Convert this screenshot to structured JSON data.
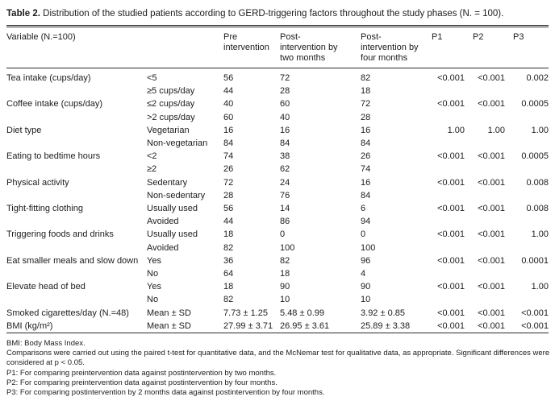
{
  "table": {
    "title_label": "Table 2.",
    "title_text": "Distribution of the studied patients according to GERD-triggering factors throughout the study phases (N. = 100).",
    "header": {
      "variable": "Variable (N.=100)",
      "pre": "Pre\nintervention",
      "post2": "Post-\nintervention by\ntwo months",
      "post4": "Post-\nintervention by\nfour months",
      "p1": "P1",
      "p2": "P2",
      "p3": "P3"
    },
    "rows": [
      {
        "variable": "Tea intake (cups/day)",
        "category": "<5",
        "pre": "56",
        "post2": "72",
        "post4": "82",
        "p1": "<0.001",
        "p2": "<0.001",
        "p3": "0.002"
      },
      {
        "variable": "",
        "category": "≥5 cups/day",
        "pre": "44",
        "post2": "28",
        "post4": "18",
        "p1": "",
        "p2": "",
        "p3": ""
      },
      {
        "variable": "Coffee intake (cups/day)",
        "category": "≤2 cups/day",
        "pre": "40",
        "post2": "60",
        "post4": "72",
        "p1": "<0.001",
        "p2": "<0.001",
        "p3": "0.0005"
      },
      {
        "variable": "",
        "category": ">2 cups/day",
        "pre": "60",
        "post2": "40",
        "post4": "28",
        "p1": "",
        "p2": "",
        "p3": ""
      },
      {
        "variable": "Diet type",
        "category": "Vegetarian",
        "pre": "16",
        "post2": "16",
        "post4": "16",
        "p1": "1.00",
        "p2": "1.00",
        "p3": "1.00"
      },
      {
        "variable": "",
        "category": "Non-vegetarian",
        "pre": "84",
        "post2": "84",
        "post4": "84",
        "p1": "",
        "p2": "",
        "p3": ""
      },
      {
        "variable": "Eating to bedtime hours",
        "category": "<2",
        "pre": "74",
        "post2": "38",
        "post4": "26",
        "p1": "<0.001",
        "p2": "<0.001",
        "p3": "0.0005"
      },
      {
        "variable": "",
        "category": "≥2",
        "pre": "26",
        "post2": "62",
        "post4": "74",
        "p1": "",
        "p2": "",
        "p3": ""
      },
      {
        "variable": "Physical activity",
        "category": "Sedentary",
        "pre": "72",
        "post2": "24",
        "post4": "16",
        "p1": "<0.001",
        "p2": "<0.001",
        "p3": "0.008"
      },
      {
        "variable": "",
        "category": "Non-sedentary",
        "pre": "28",
        "post2": "76",
        "post4": "84",
        "p1": "",
        "p2": "",
        "p3": ""
      },
      {
        "variable": "Tight-fitting clothing",
        "category": "Usually used",
        "pre": "56",
        "post2": "14",
        "post4": "6",
        "p1": "<0.001",
        "p2": "<0.001",
        "p3": "0.008"
      },
      {
        "variable": "",
        "category": "Avoided",
        "pre": "44",
        "post2": "86",
        "post4": "94",
        "p1": "",
        "p2": "",
        "p3": ""
      },
      {
        "variable": "Triggering foods and drinks",
        "category": "Usually used",
        "pre": "18",
        "post2": "0",
        "post4": "0",
        "p1": "<0.001",
        "p2": "<0.001",
        "p3": "1.00"
      },
      {
        "variable": "",
        "category": "Avoided",
        "pre": "82",
        "post2": "100",
        "post4": "100",
        "p1": "",
        "p2": "",
        "p3": ""
      },
      {
        "variable": "Eat smaller meals and slow down",
        "category": "Yes",
        "pre": "36",
        "post2": "82",
        "post4": "96",
        "p1": "<0.001",
        "p2": "<0.001",
        "p3": "0.0001"
      },
      {
        "variable": "",
        "category": "No",
        "pre": "64",
        "post2": "18",
        "post4": "4",
        "p1": "",
        "p2": "",
        "p3": ""
      },
      {
        "variable": "Elevate head of bed",
        "category": "Yes",
        "pre": "18",
        "post2": "90",
        "post4": "90",
        "p1": "<0.001",
        "p2": "<0.001",
        "p3": "1.00"
      },
      {
        "variable": "",
        "category": "No",
        "pre": "82",
        "post2": "10",
        "post4": "10",
        "p1": "",
        "p2": "",
        "p3": ""
      },
      {
        "variable": "Smoked cigarettes/day (N.=48)",
        "category": "Mean ± SD",
        "pre": "7.73 ± 1.25",
        "post2": "5.48 ± 0.99",
        "post4": "3.92 ± 0.85",
        "p1": "<0.001",
        "p2": "<0.001",
        "p3": "<0.001"
      },
      {
        "variable": "BMI (kg/m²)",
        "category": "Mean ± SD",
        "pre": "27.99 ± 3.71",
        "post2": "26.95 ± 3.61",
        "post4": "25.89 ± 3.38",
        "p1": "<0.001",
        "p2": "<0.001",
        "p3": "<0.001"
      }
    ],
    "footnotes": [
      "BMI: Body Mass Index.",
      "Comparisons were carried out using the paired t-test for quantitative data, and the McNemar test for qualitative data, as appropriate. Significant differences were considered at p < 0.05.",
      "P1: For comparing preintervention data against postintervention by two months.",
      "P2: For comparing preintervention data against postintervention by four months.",
      "P3: For comparing postintervention by 2 months data against postintervention by four months."
    ]
  }
}
